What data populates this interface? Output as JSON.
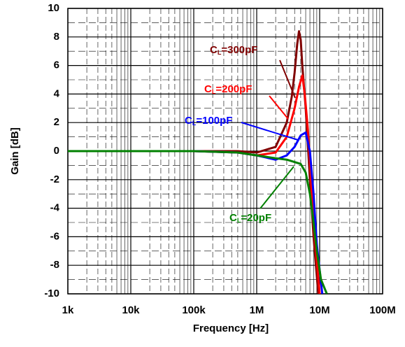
{
  "chart_data": {
    "type": "line",
    "xlabel": "Frequency [Hz]",
    "ylabel": "Gain [dB]",
    "xscale": "log",
    "grid": true,
    "minor_grid": true,
    "xlim": [
      1000,
      100000000
    ],
    "xticks": [
      {
        "value": 1000,
        "label": "1k"
      },
      {
        "value": 10000,
        "label": "10k"
      },
      {
        "value": 100000,
        "label": "100k"
      },
      {
        "value": 1000000,
        "label": "1M"
      },
      {
        "value": 10000000,
        "label": "10M"
      },
      {
        "value": 100000000,
        "label": "100M"
      }
    ],
    "ylim": [
      -10,
      10
    ],
    "yticks": [
      10,
      8,
      6,
      4,
      2,
      0,
      -2,
      -4,
      -6,
      -8,
      -10
    ],
    "series": [
      {
        "name": "CL=300pF",
        "color": "#800000",
        "x": [
          1000,
          100000,
          500000,
          1000000,
          2000000,
          3000000,
          3600000,
          4000000,
          4400000,
          4700000,
          5000000,
          5300000,
          6000000,
          7000000,
          8000000,
          9500000
        ],
        "values": [
          0,
          0,
          0,
          -0.1,
          0.3,
          2,
          3.8,
          5.5,
          7.5,
          8.4,
          7.8,
          6,
          3,
          -2,
          -6,
          -10
        ]
      },
      {
        "name": "CL=200pF",
        "color": "#ff0000",
        "x": [
          1000,
          100000,
          500000,
          1000000,
          2000000,
          3000000,
          4000000,
          4700000,
          5300000,
          5800000,
          6500000,
          7200000,
          8000000,
          10000000
        ],
        "values": [
          0,
          0,
          -0.1,
          -0.3,
          -0.1,
          1,
          3,
          4.5,
          5.3,
          4,
          1.5,
          -1.5,
          -5,
          -10
        ]
      },
      {
        "name": "CL=100pF",
        "color": "#0000ff",
        "x": [
          1000,
          100000,
          500000,
          1000000,
          2000000,
          3000000,
          4000000,
          5000000,
          6000000,
          7000000,
          8000000,
          9000000,
          11000000
        ],
        "values": [
          0,
          0,
          -0.1,
          -0.3,
          -0.6,
          -0.3,
          0.3,
          1.1,
          1.3,
          0,
          -3,
          -6.5,
          -10
        ]
      },
      {
        "name": "CL=20pF",
        "color": "#008000",
        "x": [
          1000,
          100000,
          500000,
          1000000,
          2000000,
          3000000,
          5000000,
          6000000,
          7000000,
          8000000,
          9000000,
          10500000,
          13000000
        ],
        "values": [
          0,
          0,
          -0.1,
          -0.3,
          -0.5,
          -0.6,
          -0.9,
          -1.5,
          -3,
          -5,
          -7,
          -9,
          -10
        ]
      }
    ]
  }
}
